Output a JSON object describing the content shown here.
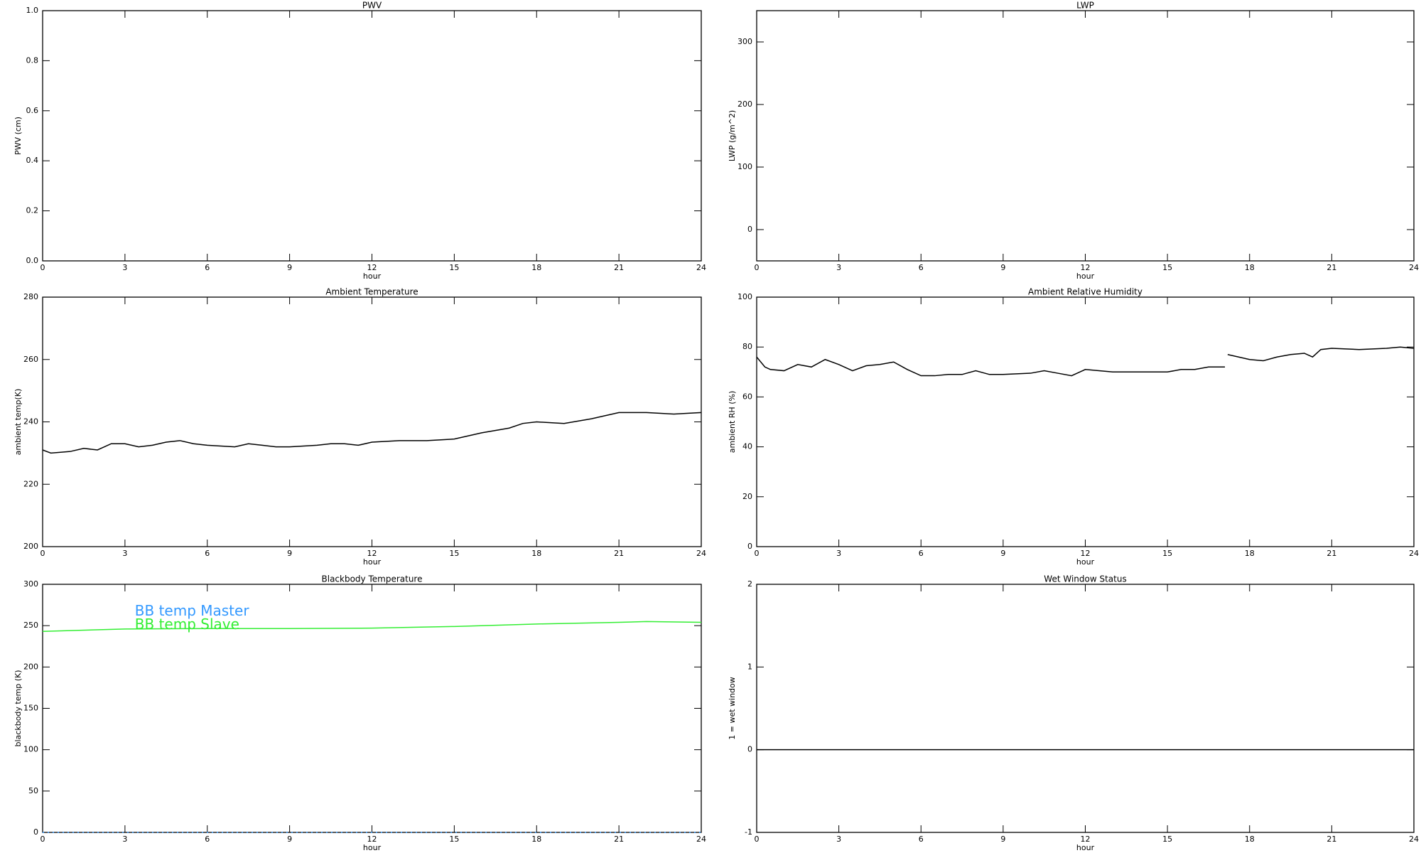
{
  "chart_data": [
    {
      "type": "line",
      "title": "PWV",
      "xlabel": "hour",
      "ylabel": "PWV (cm)",
      "xlim": [
        0,
        24
      ],
      "xticks": [
        0,
        3,
        6,
        9,
        12,
        15,
        18,
        21,
        24
      ],
      "ylim": [
        0,
        1
      ],
      "yticks": [
        {
          "value": 0,
          "label": "0.0"
        },
        {
          "value": 0.2,
          "label": "0.2"
        },
        {
          "value": 0.4,
          "label": "0.4"
        },
        {
          "value": 0.6,
          "label": "0.6"
        },
        {
          "value": 0.8,
          "label": "0.8"
        },
        {
          "value": 1,
          "label": "1.0"
        }
      ],
      "series": []
    },
    {
      "type": "line",
      "title": "LWP",
      "xlabel": "hour",
      "ylabel": "LWP (g/m^2)",
      "xlim": [
        0,
        24
      ],
      "xticks": [
        0,
        3,
        6,
        9,
        12,
        15,
        18,
        21,
        24
      ],
      "ylim": [
        -50,
        350
      ],
      "yticks": [
        0,
        100,
        200,
        300
      ],
      "series": []
    },
    {
      "type": "line",
      "title": "Ambient Temperature",
      "xlabel": "hour",
      "ylabel": "ambient temp(K)",
      "xlim": [
        0,
        24
      ],
      "xticks": [
        0,
        3,
        6,
        9,
        12,
        15,
        18,
        21,
        24
      ],
      "ylim": [
        200,
        280
      ],
      "yticks": [
        200,
        220,
        240,
        260,
        280
      ],
      "series": [
        {
          "color": "#000000",
          "x": [
            0,
            0.3,
            1,
            1.5,
            2,
            2.5,
            3,
            3.5,
            4,
            4.5,
            5,
            5.5,
            6,
            7,
            7.5,
            8,
            8.5,
            9,
            10,
            10.5,
            11,
            11.5,
            12,
            13,
            14,
            15,
            15.5,
            16,
            17,
            17.5,
            18,
            19,
            20,
            20.5,
            21,
            22,
            23,
            24
          ],
          "values": [
            231,
            230,
            230.5,
            231.5,
            231,
            233,
            233,
            232,
            232.5,
            233.5,
            234,
            233,
            232.5,
            232,
            233,
            232.5,
            232,
            232,
            232.5,
            233,
            233,
            232.5,
            233.5,
            234,
            234,
            234.5,
            235.5,
            236.5,
            238,
            239.5,
            240,
            239.5,
            241,
            242,
            243,
            243,
            242.5,
            243
          ]
        }
      ]
    },
    {
      "type": "line",
      "title": "Ambient Relative Humidity",
      "xlabel": "hour",
      "ylabel": "ambient RH (%)",
      "xlim": [
        0,
        24
      ],
      "xticks": [
        0,
        3,
        6,
        9,
        12,
        15,
        18,
        21,
        24
      ],
      "ylim": [
        0,
        100
      ],
      "yticks": [
        0,
        20,
        40,
        60,
        80,
        100
      ],
      "series": [
        {
          "color": "#000000",
          "x": [
            0,
            0.3,
            0.5,
            1,
            1.5,
            2,
            2.5,
            3,
            3.5,
            4,
            4.5,
            5,
            5.5,
            6,
            6.5,
            7,
            7.5,
            8,
            8.5,
            9,
            10,
            10.5,
            11,
            11.5,
            12,
            12.5,
            13,
            14,
            15,
            15.5,
            16,
            16.5,
            17.1,
            17.15,
            17.2,
            18,
            18.5,
            19,
            19.5,
            20,
            20.3,
            20.6,
            21,
            22,
            23,
            23.5,
            24
          ],
          "values": [
            76,
            72,
            71,
            70.5,
            73,
            72,
            75,
            73,
            70.5,
            72.5,
            73,
            74,
            71,
            68.5,
            68.5,
            69,
            69,
            70.5,
            69,
            69,
            69.5,
            70.5,
            69.5,
            68.5,
            71,
            70.5,
            70,
            70,
            70,
            71,
            71,
            72,
            72,
            null,
            77,
            75,
            74.5,
            76,
            77,
            77.5,
            76,
            79,
            79.5,
            79,
            79.5,
            80,
            79.5
          ]
        }
      ]
    },
    {
      "type": "line",
      "title": "Blackbody Temperature",
      "xlabel": "hour",
      "ylabel": "blackbody temp (K)",
      "xlim": [
        0,
        24
      ],
      "xticks": [
        0,
        3,
        6,
        9,
        12,
        15,
        18,
        21,
        24
      ],
      "ylim": [
        0,
        300
      ],
      "yticks": [
        0,
        50,
        100,
        150,
        200,
        250,
        300
      ],
      "series": [
        {
          "name": "BB temp Master",
          "color": "#3399ff",
          "dashed": true,
          "x": [
            0,
            3,
            6,
            9,
            12,
            15,
            18,
            21,
            22,
            24
          ],
          "values": [
            0,
            0,
            0,
            0,
            0,
            0,
            0,
            0,
            0,
            0
          ]
        },
        {
          "name": "BB temp Slave",
          "color": "#33ee33",
          "x": [
            0,
            3,
            6,
            9,
            12,
            15,
            18,
            21,
            22,
            24
          ],
          "values": [
            243,
            246,
            246.5,
            246.5,
            247,
            249,
            252,
            254,
            255,
            254
          ]
        }
      ]
    },
    {
      "type": "line",
      "title": "Wet Window Status",
      "xlabel": "hour",
      "ylabel": "1 = wet window",
      "xlim": [
        0,
        24
      ],
      "xticks": [
        0,
        3,
        6,
        9,
        12,
        15,
        18,
        21,
        24
      ],
      "ylim": [
        -1,
        2
      ],
      "yticks": [
        -1,
        0,
        1,
        2
      ],
      "series": [
        {
          "color": "#000000",
          "x": [
            0,
            24
          ],
          "values": [
            0,
            0
          ]
        }
      ]
    }
  ]
}
